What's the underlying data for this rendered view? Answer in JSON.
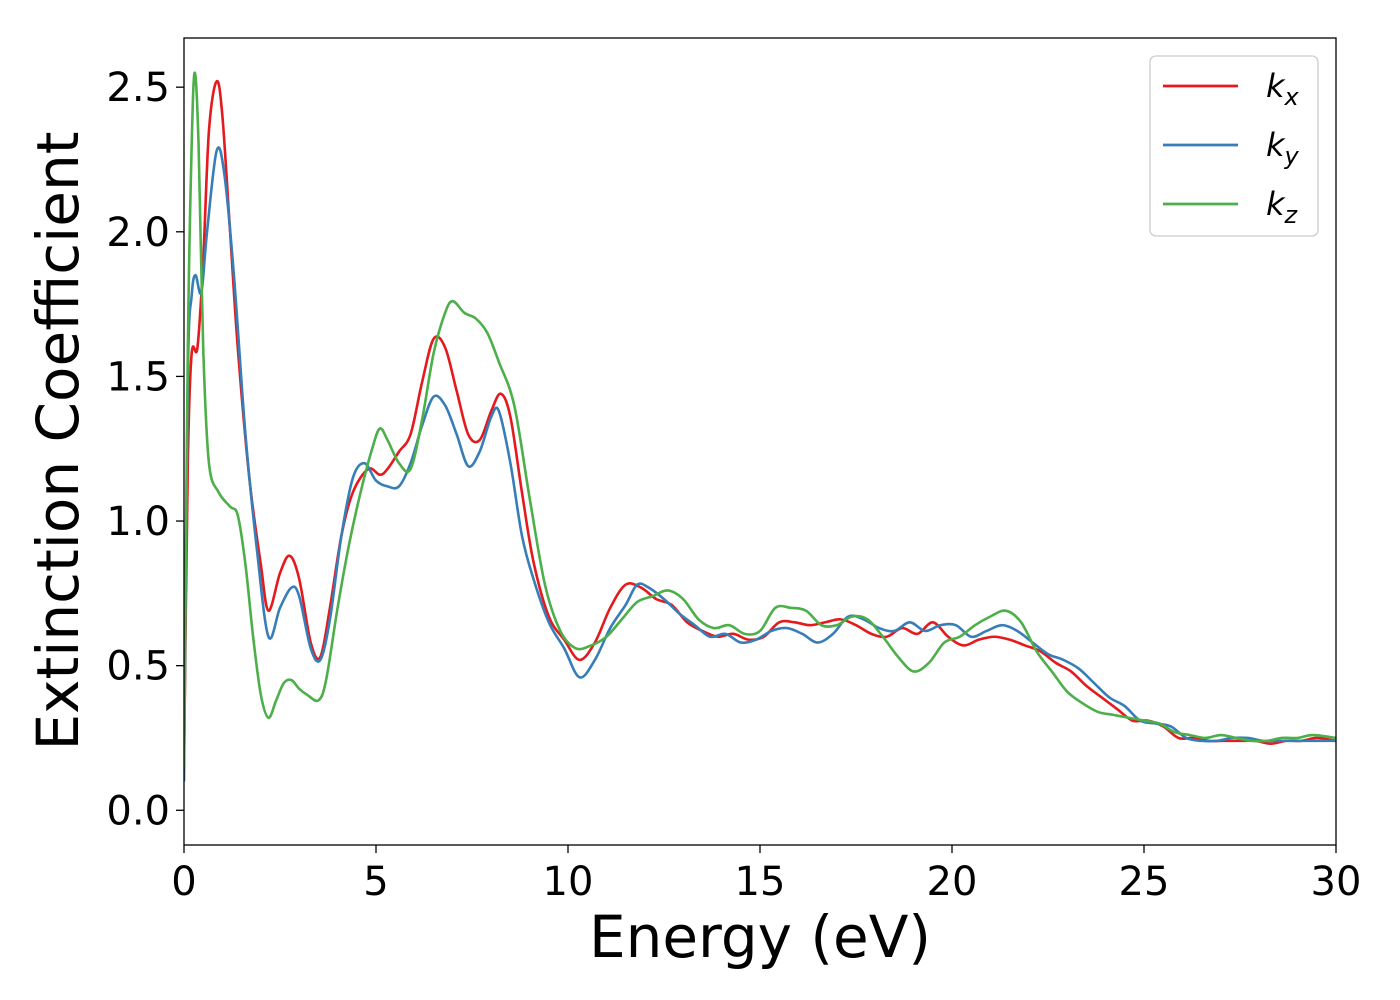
{
  "chart_data": {
    "type": "line",
    "xlabel": "Energy (eV)",
    "ylabel": "Extinction Coefficient",
    "xlim": [
      0,
      30
    ],
    "ylim": [
      -0.12,
      2.67
    ],
    "xticks": [
      0,
      5,
      10,
      15,
      20,
      25,
      30
    ],
    "xtick_labels": [
      "0",
      "5",
      "10",
      "15",
      "20",
      "25",
      "30"
    ],
    "yticks": [
      0.0,
      0.5,
      1.0,
      1.5,
      2.0,
      2.5
    ],
    "ytick_labels": [
      "0.0",
      "0.5",
      "1.0",
      "1.5",
      "2.0",
      "2.5"
    ],
    "grid": false,
    "legend_position": "top-right",
    "series": [
      {
        "name": "k",
        "subscript": "x",
        "color": "#e41a1c",
        "x": [
          0,
          0.1,
          0.2,
          0.35,
          0.5,
          0.65,
          0.85,
          1.0,
          1.2,
          1.4,
          1.7,
          2.0,
          2.2,
          2.5,
          2.75,
          3.0,
          3.3,
          3.55,
          3.8,
          4.1,
          4.4,
          4.8,
          5.1,
          5.3,
          5.6,
          5.9,
          6.2,
          6.5,
          6.8,
          7.1,
          7.4,
          7.7,
          8.0,
          8.25,
          8.5,
          8.8,
          9.1,
          9.5,
          9.9,
          10.3,
          10.7,
          11.1,
          11.5,
          11.9,
          12.3,
          12.7,
          13.1,
          13.5,
          13.9,
          14.3,
          14.7,
          15.1,
          15.5,
          15.9,
          16.3,
          16.7,
          17.1,
          17.5,
          17.9,
          18.3,
          18.7,
          19.1,
          19.5,
          19.9,
          20.3,
          20.7,
          21.1,
          21.5,
          21.9,
          22.3,
          22.7,
          23.1,
          23.5,
          23.9,
          24.3,
          24.7,
          25.1,
          25.5,
          25.9,
          26.3,
          26.7,
          27.1,
          27.5,
          27.9,
          28.3,
          28.7,
          29.1,
          29.5,
          30.0
        ],
        "y": [
          0.15,
          1.2,
          1.58,
          1.6,
          1.9,
          2.35,
          2.52,
          2.4,
          2.0,
          1.6,
          1.15,
          0.85,
          0.69,
          0.82,
          0.88,
          0.8,
          0.58,
          0.53,
          0.7,
          0.95,
          1.1,
          1.18,
          1.16,
          1.18,
          1.24,
          1.3,
          1.48,
          1.63,
          1.6,
          1.45,
          1.3,
          1.28,
          1.38,
          1.44,
          1.36,
          1.1,
          0.86,
          0.67,
          0.59,
          0.52,
          0.58,
          0.7,
          0.78,
          0.77,
          0.73,
          0.71,
          0.65,
          0.62,
          0.6,
          0.61,
          0.59,
          0.6,
          0.65,
          0.65,
          0.64,
          0.65,
          0.66,
          0.64,
          0.61,
          0.6,
          0.63,
          0.61,
          0.65,
          0.6,
          0.57,
          0.59,
          0.6,
          0.59,
          0.57,
          0.55,
          0.51,
          0.48,
          0.43,
          0.39,
          0.35,
          0.31,
          0.31,
          0.29,
          0.25,
          0.25,
          0.24,
          0.24,
          0.24,
          0.24,
          0.23,
          0.24,
          0.24,
          0.25,
          0.24
        ]
      },
      {
        "name": "k",
        "subscript": "y",
        "color": "#377eb8",
        "x": [
          0,
          0.1,
          0.2,
          0.3,
          0.45,
          0.6,
          0.85,
          1.05,
          1.3,
          1.6,
          1.9,
          2.2,
          2.5,
          2.8,
          3.0,
          3.3,
          3.55,
          3.8,
          4.1,
          4.4,
          4.7,
          5.0,
          5.3,
          5.6,
          5.9,
          6.2,
          6.5,
          6.8,
          7.1,
          7.4,
          7.7,
          8.0,
          8.2,
          8.5,
          8.8,
          9.1,
          9.5,
          9.9,
          10.3,
          10.7,
          11.1,
          11.5,
          11.8,
          12.1,
          12.5,
          12.9,
          13.3,
          13.7,
          14.1,
          14.5,
          14.9,
          15.3,
          15.7,
          16.1,
          16.5,
          16.9,
          17.3,
          17.7,
          18.1,
          18.5,
          18.9,
          19.3,
          19.7,
          20.1,
          20.5,
          20.9,
          21.3,
          21.7,
          22.1,
          22.5,
          22.9,
          23.3,
          23.7,
          24.1,
          24.5,
          24.9,
          25.3,
          25.7,
          26.1,
          26.5,
          26.9,
          27.3,
          27.7,
          28.1,
          28.5,
          28.9,
          29.3,
          29.7,
          30.0
        ],
        "y": [
          0.1,
          1.5,
          1.78,
          1.85,
          1.79,
          2.0,
          2.28,
          2.2,
          1.85,
          1.3,
          0.9,
          0.6,
          0.7,
          0.77,
          0.74,
          0.56,
          0.52,
          0.66,
          0.95,
          1.15,
          1.2,
          1.14,
          1.12,
          1.12,
          1.2,
          1.33,
          1.43,
          1.4,
          1.3,
          1.19,
          1.24,
          1.36,
          1.38,
          1.2,
          0.95,
          0.8,
          0.65,
          0.56,
          0.46,
          0.52,
          0.63,
          0.71,
          0.78,
          0.77,
          0.73,
          0.68,
          0.64,
          0.6,
          0.61,
          0.58,
          0.59,
          0.62,
          0.63,
          0.61,
          0.58,
          0.61,
          0.67,
          0.66,
          0.63,
          0.62,
          0.65,
          0.62,
          0.64,
          0.64,
          0.6,
          0.62,
          0.64,
          0.62,
          0.58,
          0.54,
          0.52,
          0.49,
          0.44,
          0.39,
          0.36,
          0.31,
          0.3,
          0.29,
          0.25,
          0.24,
          0.24,
          0.25,
          0.25,
          0.24,
          0.24,
          0.24,
          0.24,
          0.24,
          0.24
        ]
      },
      {
        "name": "k",
        "subscript": "z",
        "color": "#4daf4a",
        "x": [
          0,
          0.1,
          0.2,
          0.28,
          0.38,
          0.5,
          0.65,
          0.9,
          1.2,
          1.4,
          1.6,
          1.8,
          2.0,
          2.2,
          2.4,
          2.6,
          2.8,
          3.0,
          3.2,
          3.5,
          3.7,
          4.0,
          4.3,
          4.6,
          4.9,
          5.1,
          5.3,
          5.6,
          5.9,
          6.2,
          6.5,
          6.8,
          7.0,
          7.3,
          7.6,
          7.9,
          8.2,
          8.6,
          9.0,
          9.4,
          9.8,
          10.2,
          10.6,
          11.0,
          11.4,
          11.8,
          12.2,
          12.6,
          13.0,
          13.4,
          13.8,
          14.2,
          14.6,
          15.0,
          15.4,
          15.8,
          16.2,
          16.6,
          17.0,
          17.4,
          17.8,
          18.2,
          18.6,
          19.0,
          19.4,
          19.8,
          20.2,
          20.6,
          21.0,
          21.4,
          21.8,
          22.2,
          22.6,
          23.0,
          23.4,
          23.8,
          24.2,
          24.6,
          25.0,
          25.4,
          25.8,
          26.2,
          26.6,
          27.0,
          27.4,
          27.8,
          28.2,
          28.6,
          29.0,
          29.4,
          30.0
        ],
        "y": [
          0.15,
          1.6,
          2.3,
          2.55,
          2.3,
          1.6,
          1.2,
          1.1,
          1.05,
          1.02,
          0.85,
          0.6,
          0.4,
          0.32,
          0.38,
          0.44,
          0.45,
          0.42,
          0.4,
          0.38,
          0.45,
          0.7,
          0.92,
          1.1,
          1.25,
          1.32,
          1.28,
          1.2,
          1.18,
          1.35,
          1.58,
          1.72,
          1.76,
          1.72,
          1.7,
          1.65,
          1.55,
          1.4,
          1.08,
          0.78,
          0.62,
          0.56,
          0.57,
          0.6,
          0.66,
          0.72,
          0.74,
          0.76,
          0.73,
          0.66,
          0.63,
          0.64,
          0.61,
          0.62,
          0.7,
          0.7,
          0.69,
          0.64,
          0.64,
          0.67,
          0.66,
          0.6,
          0.53,
          0.48,
          0.51,
          0.58,
          0.6,
          0.64,
          0.67,
          0.69,
          0.65,
          0.55,
          0.48,
          0.41,
          0.37,
          0.34,
          0.33,
          0.32,
          0.31,
          0.3,
          0.27,
          0.26,
          0.25,
          0.26,
          0.25,
          0.24,
          0.24,
          0.25,
          0.25,
          0.26,
          0.25
        ]
      }
    ]
  }
}
